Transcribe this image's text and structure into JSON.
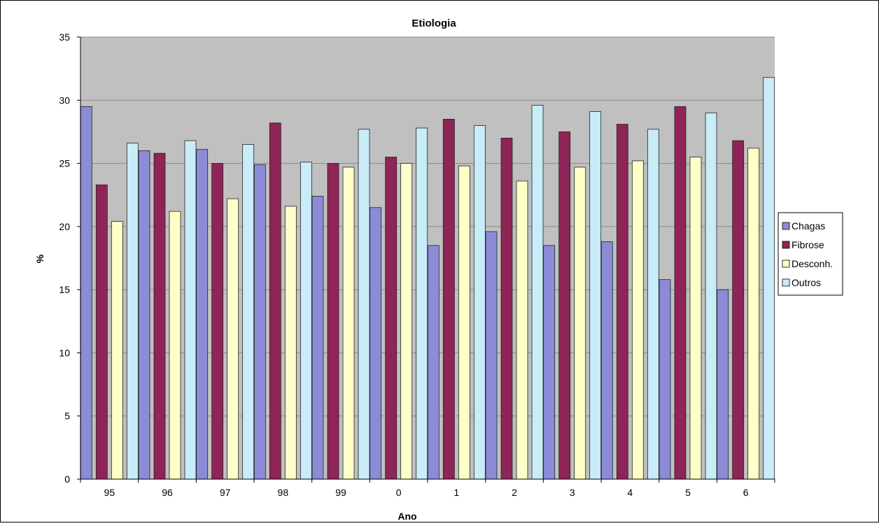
{
  "chart_data": {
    "type": "bar",
    "title": "Etiologia",
    "xlabel": "Ano",
    "ylabel": "%",
    "ylim": [
      0,
      35
    ],
    "yticks": [
      0,
      5,
      10,
      15,
      20,
      25,
      30,
      35
    ],
    "grid": true,
    "legend_position": "right",
    "categories": [
      "95",
      "96",
      "97",
      "98",
      "99",
      "0",
      "1",
      "2",
      "3",
      "4",
      "5",
      "6"
    ],
    "series": [
      {
        "name": "Chagas",
        "color": "#8b8bd8",
        "values": [
          29.5,
          26.0,
          26.1,
          24.9,
          22.4,
          21.5,
          18.5,
          19.6,
          18.5,
          18.8,
          15.8,
          15.0
        ]
      },
      {
        "name": "Fibrose",
        "color": "#8f2456",
        "values": [
          23.3,
          25.8,
          25.0,
          28.2,
          25.0,
          25.5,
          28.5,
          27.0,
          27.5,
          28.1,
          29.5,
          26.8
        ]
      },
      {
        "name": "Desconh.",
        "color": "#ffffc8",
        "values": [
          20.4,
          21.2,
          22.2,
          21.6,
          24.7,
          25.0,
          24.8,
          23.6,
          24.7,
          25.2,
          25.5,
          26.2
        ]
      },
      {
        "name": "Outros",
        "color": "#c8ecf8",
        "values": [
          26.6,
          26.8,
          26.5,
          25.1,
          27.7,
          27.8,
          28.0,
          29.6,
          29.1,
          27.7,
          29.0,
          31.8
        ]
      }
    ],
    "colors": {
      "plot_background": "#c0c0c0",
      "gridline": "#8a8a8a",
      "bar_outline": "#222222"
    }
  }
}
